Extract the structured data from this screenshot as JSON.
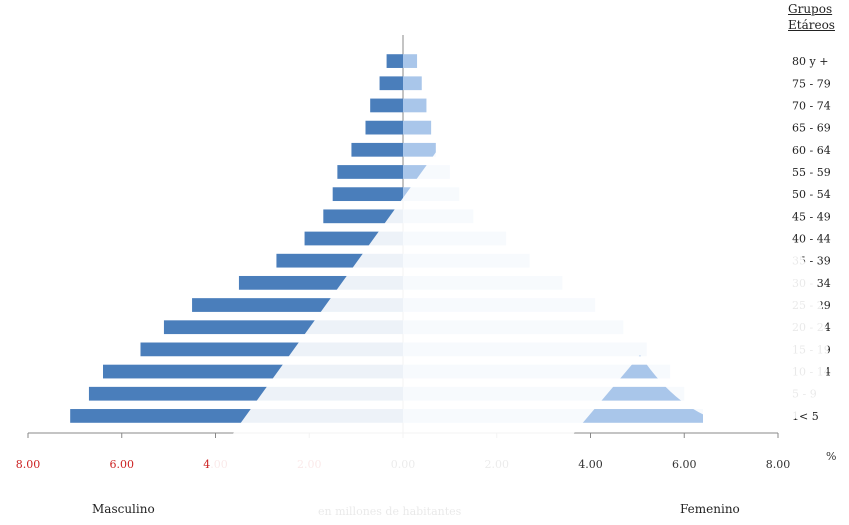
{
  "chart_data": {
    "type": "bar",
    "orientation": "horizontal",
    "subtype": "population-pyramid",
    "legend_title_line1": "Grupos",
    "legend_title_line2": "Etáreos",
    "xlabel": "en millones de habitantes",
    "left_label": "Masculino",
    "right_label": "Femenino",
    "percent_symbol": "%",
    "xlim": [
      -8,
      8
    ],
    "x_tick_labels": [
      "8.00",
      "6.00",
      "4.00",
      "2.00",
      "0.00",
      "2.00",
      "4.00",
      "6.00",
      "8.00"
    ],
    "categories": [
      "1< 5",
      "5 - 9",
      "10 - 14",
      "15 - 19",
      "20 - 24",
      "25 - 29",
      "30 - 34",
      "35 - 39",
      "40 - 44",
      "45 - 49",
      "50 - 54",
      "55 - 59",
      "60 - 64",
      "65 - 69",
      "70 - 74",
      "75 - 79",
      "80 y +"
    ],
    "series": [
      {
        "name": "Masculino",
        "color": "#4a7ebb",
        "values": [
          7.1,
          6.7,
          6.4,
          5.6,
          5.1,
          4.5,
          3.5,
          2.7,
          2.1,
          1.7,
          1.5,
          1.4,
          1.1,
          0.8,
          0.7,
          0.5,
          0.35
        ]
      },
      {
        "name": "Femenino",
        "color": "#a9c6ea",
        "values": [
          6.4,
          6.0,
          5.7,
          5.2,
          4.7,
          4.1,
          3.4,
          2.7,
          2.2,
          1.5,
          1.2,
          1.0,
          0.7,
          0.6,
          0.5,
          0.4,
          0.3
        ]
      }
    ],
    "tick_label_colors": {
      "left": "#cc2222",
      "right": "#333333"
    },
    "grid": false,
    "legend": "right"
  }
}
